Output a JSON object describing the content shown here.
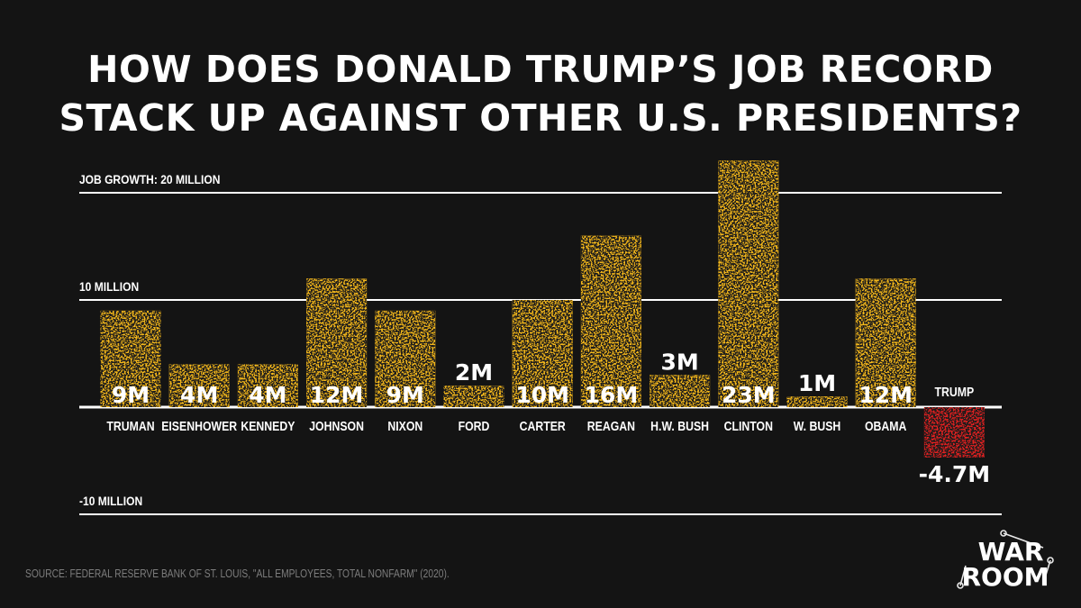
{
  "title_line1": "HOW DOES DONALD TRUMP’S JOB RECORD",
  "title_line2": "STACK UP AGAINST OTHER U.S. PRESIDENTS?",
  "source": "SOURCE: FEDERAL RESERVE BANK OF ST. LOUIS, \"ALL EMPLOYEES, TOTAL NONFARM\" (2020).",
  "logo": {
    "line1": "WAR",
    "line2": "ROOM"
  },
  "colors": {
    "background": "#141414",
    "bar": "#f5b91d",
    "negative_bar": "#e42424",
    "text": "#ffffff",
    "source": "#7d7d7d"
  },
  "chart_data": {
    "type": "bar",
    "categories": [
      "TRUMAN",
      "EISENHOWER",
      "KENNEDY",
      "JOHNSON",
      "NIXON",
      "FORD",
      "CARTER",
      "REAGAN",
      "H.W. BUSH",
      "CLINTON",
      "W. BUSH",
      "OBAMA",
      "TRUMP"
    ],
    "values": [
      9,
      4,
      4,
      12,
      9,
      2,
      10,
      16,
      3,
      23,
      1,
      12,
      -4.7
    ],
    "data_labels": [
      "9M",
      "4M",
      "4M",
      "12M",
      "9M",
      "2M",
      "10M",
      "16M",
      "3M",
      "23M",
      "1M",
      "12M",
      "-4.7M"
    ],
    "gridlines": [
      {
        "value": 20,
        "label": "JOB GROWTH: 20 MILLION"
      },
      {
        "value": 10,
        "label": "10 MILLION"
      },
      {
        "value": -10,
        "label": "-10 MILLION"
      }
    ],
    "ylim": [
      -10,
      23
    ],
    "units": "millions of jobs"
  }
}
